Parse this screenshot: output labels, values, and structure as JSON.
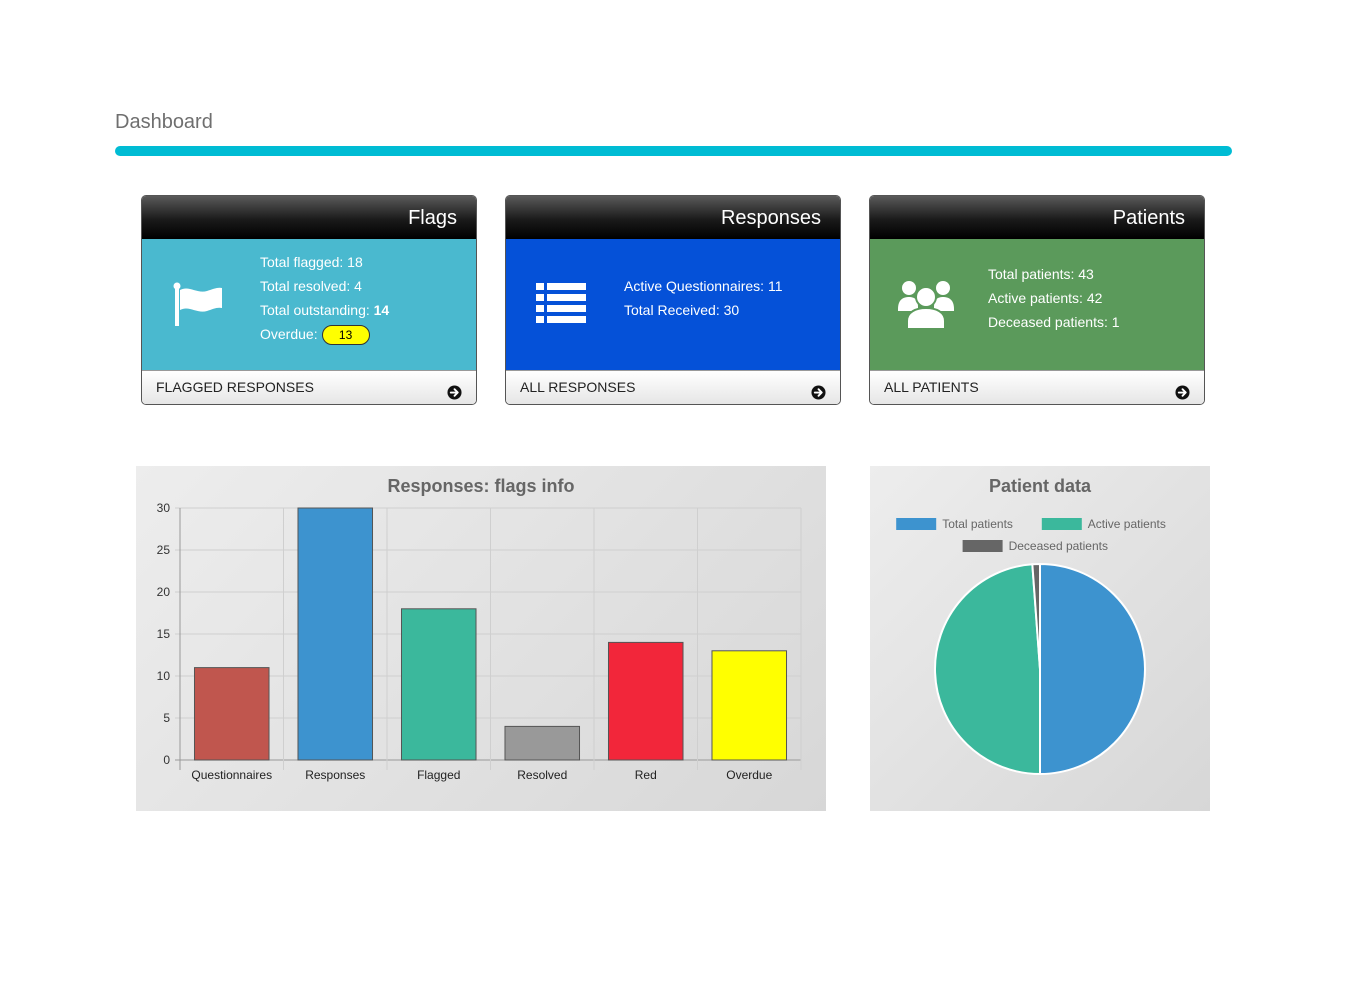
{
  "page": {
    "title": "Dashboard"
  },
  "colors": {
    "accent": "#00bcd4",
    "flags": "#4ab9cf",
    "responses": "#0551d8",
    "patients": "#5b9a5b"
  },
  "cards": {
    "flags": {
      "title": "Flags",
      "icon": "flag-icon",
      "total_flagged": "Total flagged: 18",
      "total_resolved": "Total resolved: 4",
      "total_outstanding_label": "Total outstanding: ",
      "total_outstanding_value": "14",
      "overdue_label": "Overdue:",
      "overdue_value": "13",
      "footer": "FLAGGED RESPONSES"
    },
    "responses": {
      "title": "Responses",
      "icon": "list-icon",
      "active_questionnaires": "Active Questionnaires: 11",
      "total_received": "Total Received: 30",
      "footer": "ALL RESPONSES"
    },
    "patients": {
      "title": "Patients",
      "icon": "users-icon",
      "total_patients": "Total patients: 43",
      "active_patients": "Active patients: 42",
      "deceased_patients": "Deceased patients: 1",
      "footer": "ALL PATIENTS"
    }
  },
  "chart_data": [
    {
      "type": "bar",
      "title": "Responses: flags info",
      "categories": [
        "Questionnaires",
        "Responses",
        "Flagged",
        "Resolved",
        "Red",
        "Overdue"
      ],
      "values": [
        11,
        30,
        18,
        4,
        14,
        13
      ],
      "colors": [
        "#c0564e",
        "#3d93cf",
        "#3bb89c",
        "#999999",
        "#f2263a",
        "#ffff00"
      ],
      "ylim": [
        0,
        30
      ],
      "yticks": [
        0,
        5,
        10,
        15,
        20,
        25,
        30
      ],
      "grid": true,
      "xlabel": "",
      "ylabel": ""
    },
    {
      "type": "pie",
      "title": "Patient data",
      "labels": [
        "Total patients",
        "Active patients",
        "Deceased patients"
      ],
      "values": [
        43,
        42,
        1
      ],
      "colors": [
        "#3d93cf",
        "#3bb89c",
        "#666666"
      ],
      "legend": "top"
    }
  ]
}
